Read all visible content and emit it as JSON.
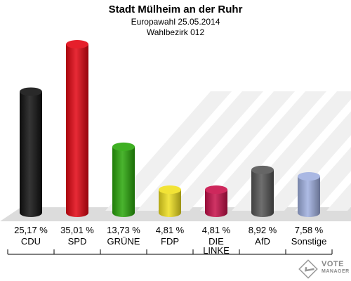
{
  "header": {
    "title": "Stadt Mülheim an der Ruhr",
    "subtitle": "Europawahl 25.05.2014",
    "district": "Wahlbezirk 012"
  },
  "chart_data": {
    "type": "bar",
    "categories": [
      "CDU",
      "SPD",
      "GRÜNE",
      "FDP",
      "DIE LINKE",
      "AfD",
      "Sonstige"
    ],
    "values": [
      25.17,
      35.01,
      13.73,
      4.81,
      4.81,
      8.92,
      7.58
    ],
    "value_labels": [
      "25,17 %",
      "35,01 %",
      "13,73 %",
      "4,81 %",
      "4,81 %",
      "8,92 %",
      "7,58 %"
    ],
    "colors": [
      "#111111",
      "#e30613",
      "#2aa70a",
      "#f0e020",
      "#c8104a",
      "#555555",
      "#a0b0e0"
    ],
    "ylim": [
      0,
      35.01
    ],
    "grid": false
  },
  "logo": {
    "line1": "VOTE",
    "line2": "MANAGER"
  }
}
